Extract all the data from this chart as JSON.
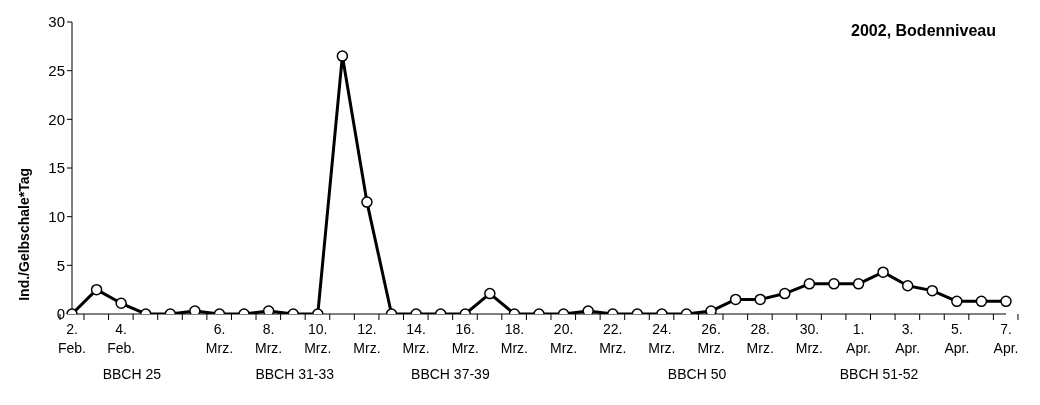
{
  "chart_data": {
    "type": "line",
    "title": "2002, Bodenniveau",
    "ylabel": "Ind./Gelbschale*Tag",
    "categories": [
      "2. Feb.",
      null,
      "4. Feb.",
      null,
      null,
      null,
      "6. Mrz.",
      null,
      "8. Mrz.",
      null,
      "10. Mrz.",
      null,
      "12. Mrz.",
      null,
      "14. Mrz.",
      null,
      "16. Mrz.",
      null,
      "18. Mrz.",
      null,
      "20. Mrz.",
      null,
      "22. Mrz.",
      null,
      "24. Mrz.",
      null,
      "26. Mrz.",
      null,
      "28. Mrz.",
      null,
      "30. Mrz.",
      null,
      "1. Apr.",
      null,
      "3. Apr.",
      null,
      "5. Apr.",
      null,
      "7. Apr."
    ],
    "series": [
      {
        "color": "#000000",
        "values": [
          0,
          2.5,
          1.1,
          0,
          0,
          0.3,
          0,
          0,
          0.3,
          0,
          0,
          26.5,
          11.5,
          0,
          0,
          0,
          0,
          2.1,
          0,
          0,
          0,
          0.3,
          0,
          0,
          0,
          0,
          0.3,
          1.5,
          1.5,
          2.1,
          3.1,
          3.1,
          3.1,
          4.3,
          2.9,
          2.4,
          1.3,
          1.3,
          1.3
        ]
      }
    ],
    "ylim": [
      0,
      30
    ],
    "yticks": [
      0,
      5,
      10,
      15,
      20,
      25,
      30
    ],
    "grid": false,
    "legend": false,
    "marker": "circle",
    "line_style": "solid",
    "annotations": [
      "BBCH 25",
      "BBCH 31-33",
      "BBCH 37-39",
      "BBCH 50",
      "BBCH 51-52"
    ]
  }
}
